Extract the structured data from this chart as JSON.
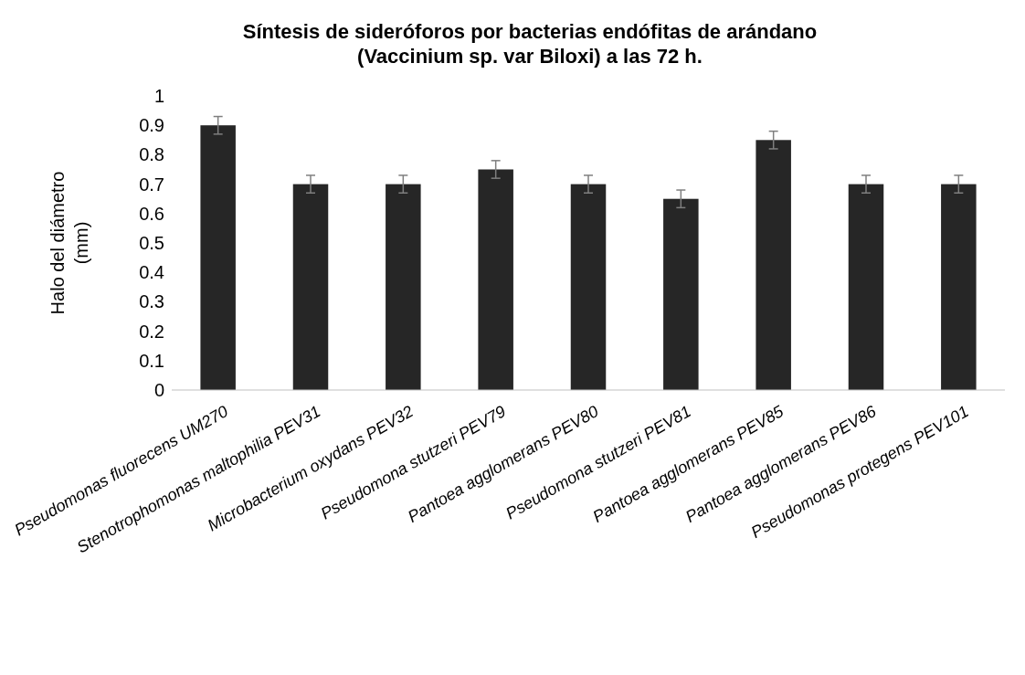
{
  "chart_data": {
    "type": "bar",
    "title": "Síntesis de sideróforos por bacterias endófitas de arándano\n(Vaccinium sp. var Biloxi) a las 72 h.",
    "ylabel": "Halo del diámetro\n(mm)",
    "categories": [
      "Pseudomonas fluorecens UM270",
      "Stenotrophomonas maltophilia PEV31",
      "Microbacterium oxydans PEV32",
      "Pseudomona stutzeri PEV79",
      "Pantoea agglomerans PEV80",
      "Pseudomona stutzeri PEV81",
      "Pantoea agglomerans PEV85",
      "Pantoea agglomerans PEV86",
      "Pseudomonas protegens PEV101"
    ],
    "values": [
      0.9,
      0.7,
      0.7,
      0.75,
      0.7,
      0.65,
      0.85,
      0.7,
      0.7
    ],
    "errors": [
      0.03,
      0.03,
      0.03,
      0.03,
      0.03,
      0.03,
      0.03,
      0.03,
      0.03
    ],
    "color": "#262626",
    "ylim": [
      0,
      1
    ],
    "yticks": [
      0,
      0.1,
      0.2,
      0.3,
      0.4,
      0.5,
      0.6,
      0.7,
      0.8,
      0.9,
      1
    ],
    "grid": false
  }
}
